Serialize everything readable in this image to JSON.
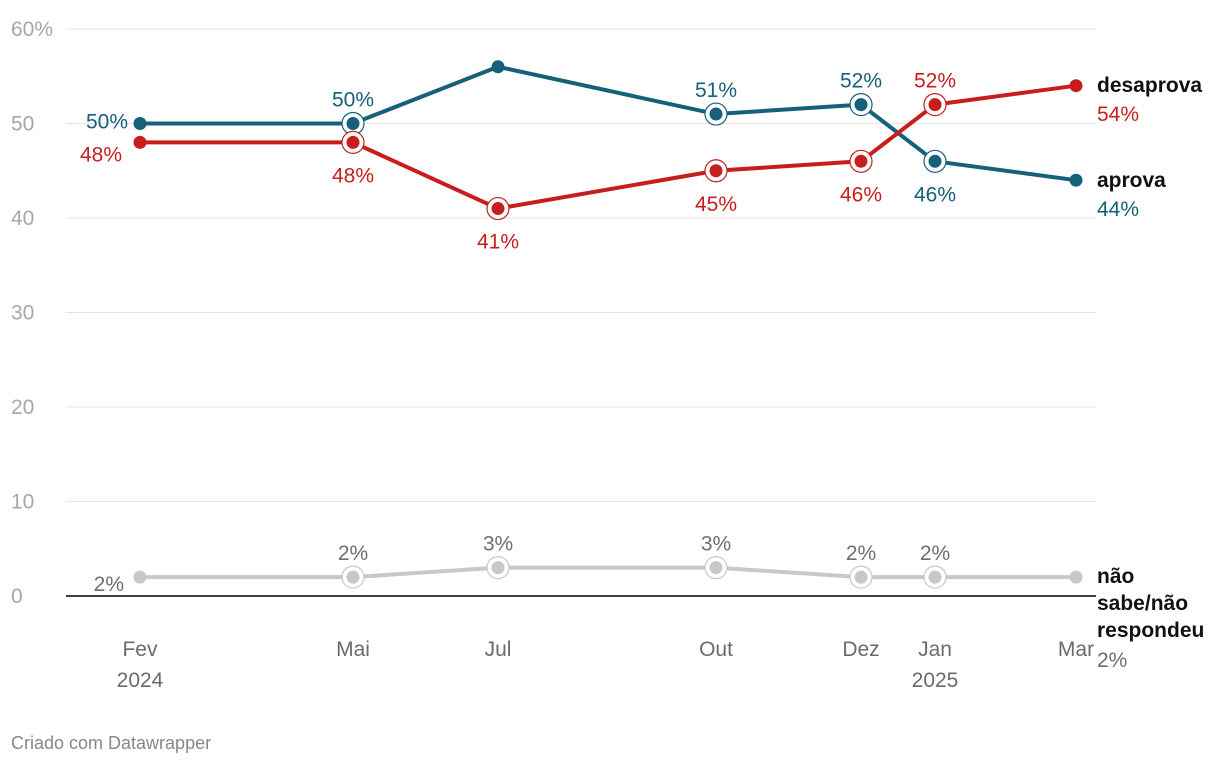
{
  "chart_data": {
    "type": "line",
    "categories": [
      "Fev 2024",
      "Mai",
      "Jul",
      "Out",
      "Dez",
      "Jan 2025",
      "Mar"
    ],
    "x_ticks": [
      {
        "line1": "Fev",
        "line2": "2024"
      },
      {
        "line1": "Mai",
        "line2": ""
      },
      {
        "line1": "Jul",
        "line2": ""
      },
      {
        "line1": "Out",
        "line2": ""
      },
      {
        "line1": "Dez",
        "line2": ""
      },
      {
        "line1": "Jan",
        "line2": "2025"
      },
      {
        "line1": "Mar",
        "line2": ""
      }
    ],
    "y_ticks": [
      "0",
      "10",
      "20",
      "30",
      "40",
      "50",
      "60%"
    ],
    "ylim": [
      0,
      60
    ],
    "series": [
      {
        "key": "aprova",
        "name": "aprova",
        "color": "#15607a",
        "values": [
          50,
          50,
          56,
          51,
          52,
          46,
          44
        ],
        "labels": [
          "50%",
          "50%",
          "",
          "51%",
          "52%",
          "46%",
          "44%"
        ]
      },
      {
        "key": "desaprova",
        "name": "desaprova",
        "color": "#c71e1d",
        "values": [
          48,
          48,
          41,
          45,
          46,
          52,
          54
        ],
        "labels": [
          "48%",
          "48%",
          "41%",
          "45%",
          "46%",
          "52%",
          "54%"
        ]
      },
      {
        "key": "nsnr",
        "name": "não sabe/não respondeu",
        "name_lines": [
          "não",
          "sabe/não",
          "respondeu"
        ],
        "color": "#c8c8c8",
        "values": [
          2,
          2,
          3,
          3,
          2,
          2,
          2
        ],
        "labels": [
          "2%",
          "2%",
          "3%",
          "3%",
          "2%",
          "2%",
          "2%"
        ]
      }
    ]
  },
  "footer": {
    "credit": "Criado com Datawrapper"
  }
}
